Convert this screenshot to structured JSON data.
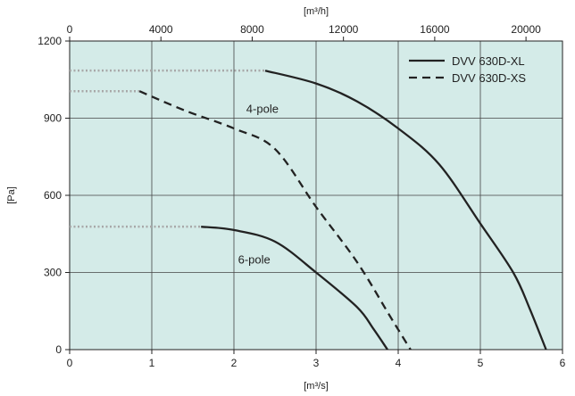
{
  "chart_data": {
    "type": "line",
    "xlabel": "[m³/s]",
    "x2label": "[m³/h]",
    "ylabel": "[Pa]",
    "xlim": [
      0,
      6
    ],
    "x2lim": [
      0,
      21600
    ],
    "ylim": [
      0,
      1200
    ],
    "xticks": [
      "0",
      "1",
      "2",
      "3",
      "4",
      "5",
      "6"
    ],
    "x2ticks": [
      "0",
      "4000",
      "8000",
      "12000",
      "16000",
      "20000"
    ],
    "x2tick_values": [
      0,
      4000,
      8000,
      12000,
      16000,
      20000
    ],
    "yticks": [
      "0",
      "300",
      "600",
      "900",
      "1200"
    ],
    "grid": true,
    "background": "#d4ebe8",
    "legend_position": "top-right",
    "series": [
      {
        "name": "DVV 630D-XL",
        "style": "solid",
        "color": "#222222",
        "points": [
          [
            2.38,
            1085
          ],
          [
            3.0,
            1035
          ],
          [
            3.5,
            965
          ],
          [
            4.0,
            860
          ],
          [
            4.5,
            720
          ],
          [
            5.0,
            490
          ],
          [
            5.4,
            300
          ],
          [
            5.6,
            160
          ],
          [
            5.8,
            0
          ]
        ]
      },
      {
        "name": "DVV 630D-XS",
        "style": "dashed",
        "color": "#222222",
        "points": [
          [
            0.85,
            1005
          ],
          [
            1.4,
            930
          ],
          [
            2.0,
            860
          ],
          [
            2.5,
            780
          ],
          [
            3.0,
            555
          ],
          [
            3.5,
            340
          ],
          [
            3.9,
            130
          ],
          [
            4.15,
            0
          ]
        ]
      },
      {
        "name": "",
        "style": "solid",
        "color": "#222222",
        "points": [
          [
            1.6,
            478
          ],
          [
            2.0,
            465
          ],
          [
            2.5,
            420
          ],
          [
            3.0,
            300
          ],
          [
            3.5,
            165
          ],
          [
            3.7,
            80
          ],
          [
            3.87,
            0
          ]
        ]
      }
    ],
    "extensions": [
      {
        "y": 1085,
        "x_from": 0,
        "x_to": 2.38
      },
      {
        "y": 1005,
        "x_from": 0,
        "x_to": 0.85
      },
      {
        "y": 478,
        "x_from": 0,
        "x_to": 1.6
      }
    ],
    "extension_color": "#a8a8a8",
    "annotations": [
      {
        "text": "4-pole",
        "x": 2.15,
        "y": 920
      },
      {
        "text": "6-pole",
        "x": 2.05,
        "y": 335
      }
    ]
  }
}
